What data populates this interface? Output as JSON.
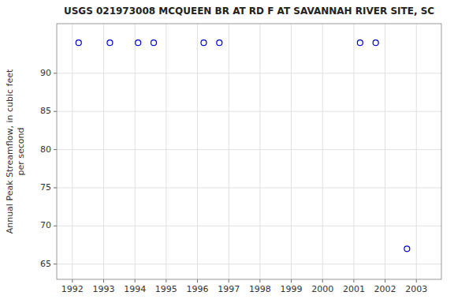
{
  "chart_data": {
    "type": "scatter",
    "title": "USGS 021973008 MCQUEEN BR AT RD F AT SAVANNAH RIVER SITE, SC",
    "ylabel": "Annual Peak Streamflow, in cubic feet\nper second",
    "x": [
      1992.2,
      1993.2,
      1994.1,
      1994.6,
      1996.2,
      1996.7,
      2001.2,
      2001.7,
      2002.7
    ],
    "values": [
      94,
      94,
      94,
      94,
      94,
      94,
      94,
      94,
      67
    ],
    "xlim": [
      1991.5,
      2003.8
    ],
    "ylim": [
      63.0,
      96.5
    ],
    "xticks": [
      1992,
      1993,
      1994,
      1995,
      1996,
      1997,
      1998,
      1999,
      2000,
      2001,
      2002,
      2003
    ],
    "yticks": [
      65,
      70,
      75,
      80,
      85,
      90
    ],
    "color": "#0000cc",
    "marker": "open-circle",
    "grid": true
  }
}
